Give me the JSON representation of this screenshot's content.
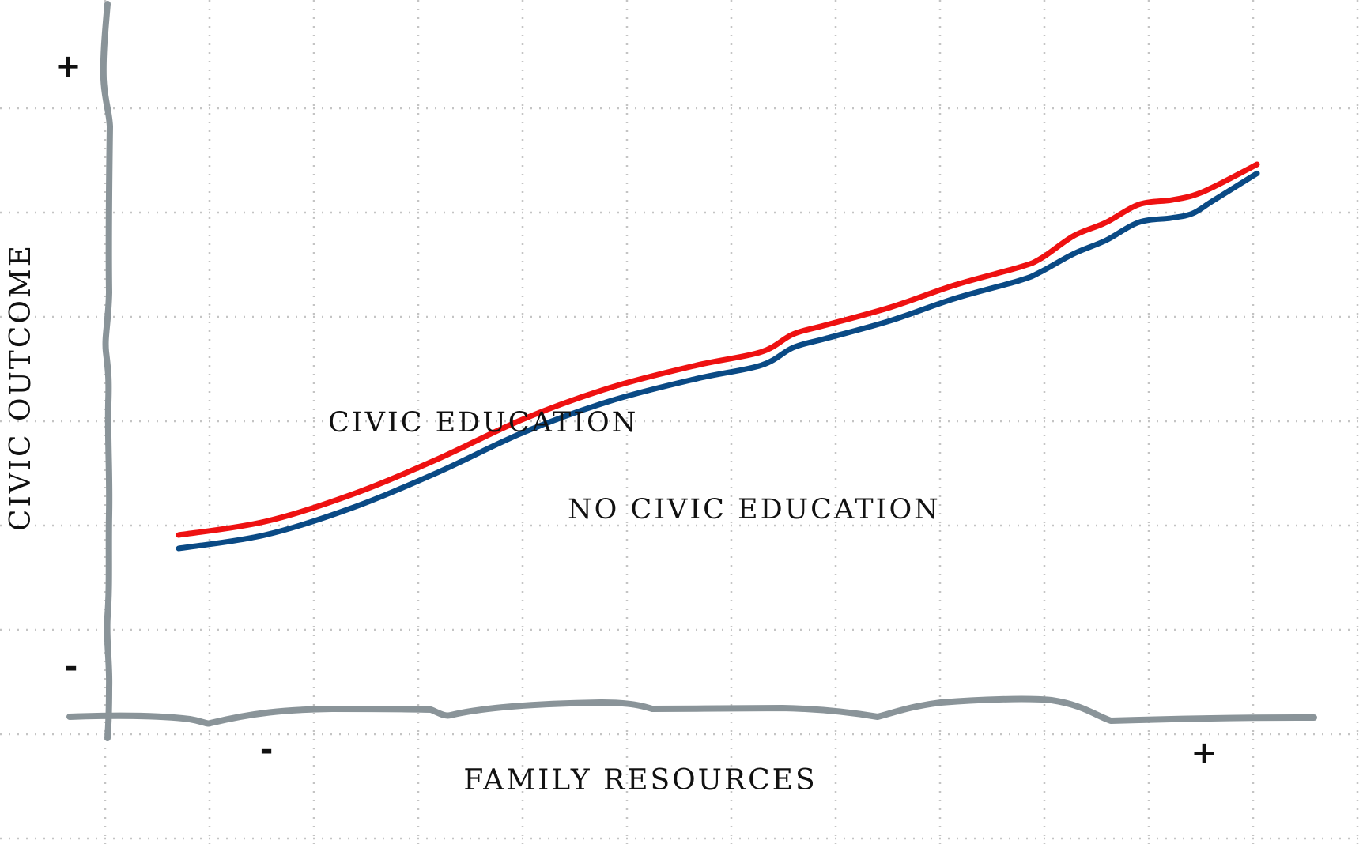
{
  "chart_data": {
    "type": "line",
    "title": "",
    "xlabel": "FAMILY RESOURCES",
    "ylabel": "CIVIC OUTCOME",
    "x_tick_labels": [
      "-",
      "+"
    ],
    "y_tick_labels": [
      "+",
      "-"
    ],
    "xlim": [
      0,
      100
    ],
    "ylim": [
      0,
      100
    ],
    "grid": true,
    "series": [
      {
        "name": "CIVIC EDUCATION",
        "color": "#ee1111",
        "x": [
          0,
          8,
          16,
          24,
          32,
          40,
          48,
          54,
          57,
          60,
          66,
          72,
          78,
          80,
          83,
          86,
          89,
          92,
          94,
          96,
          100
        ],
        "y": [
          20,
          23,
          29,
          37,
          46,
          53,
          58,
          61,
          65,
          67,
          71,
          76,
          80,
          82,
          87,
          90,
          94,
          95,
          96,
          98,
          103
        ]
      },
      {
        "name": "NO CIVIC EDUCATION",
        "color": "#0a4a85",
        "x": [
          0,
          8,
          16,
          24,
          32,
          40,
          48,
          54,
          57,
          60,
          66,
          72,
          78,
          80,
          83,
          86,
          89,
          92,
          94,
          96,
          100
        ],
        "y": [
          17,
          20,
          26,
          34,
          43,
          50,
          55,
          58,
          62,
          64,
          68,
          73,
          77,
          79,
          83,
          86,
          90,
          91,
          92,
          95,
          101
        ]
      }
    ]
  }
}
